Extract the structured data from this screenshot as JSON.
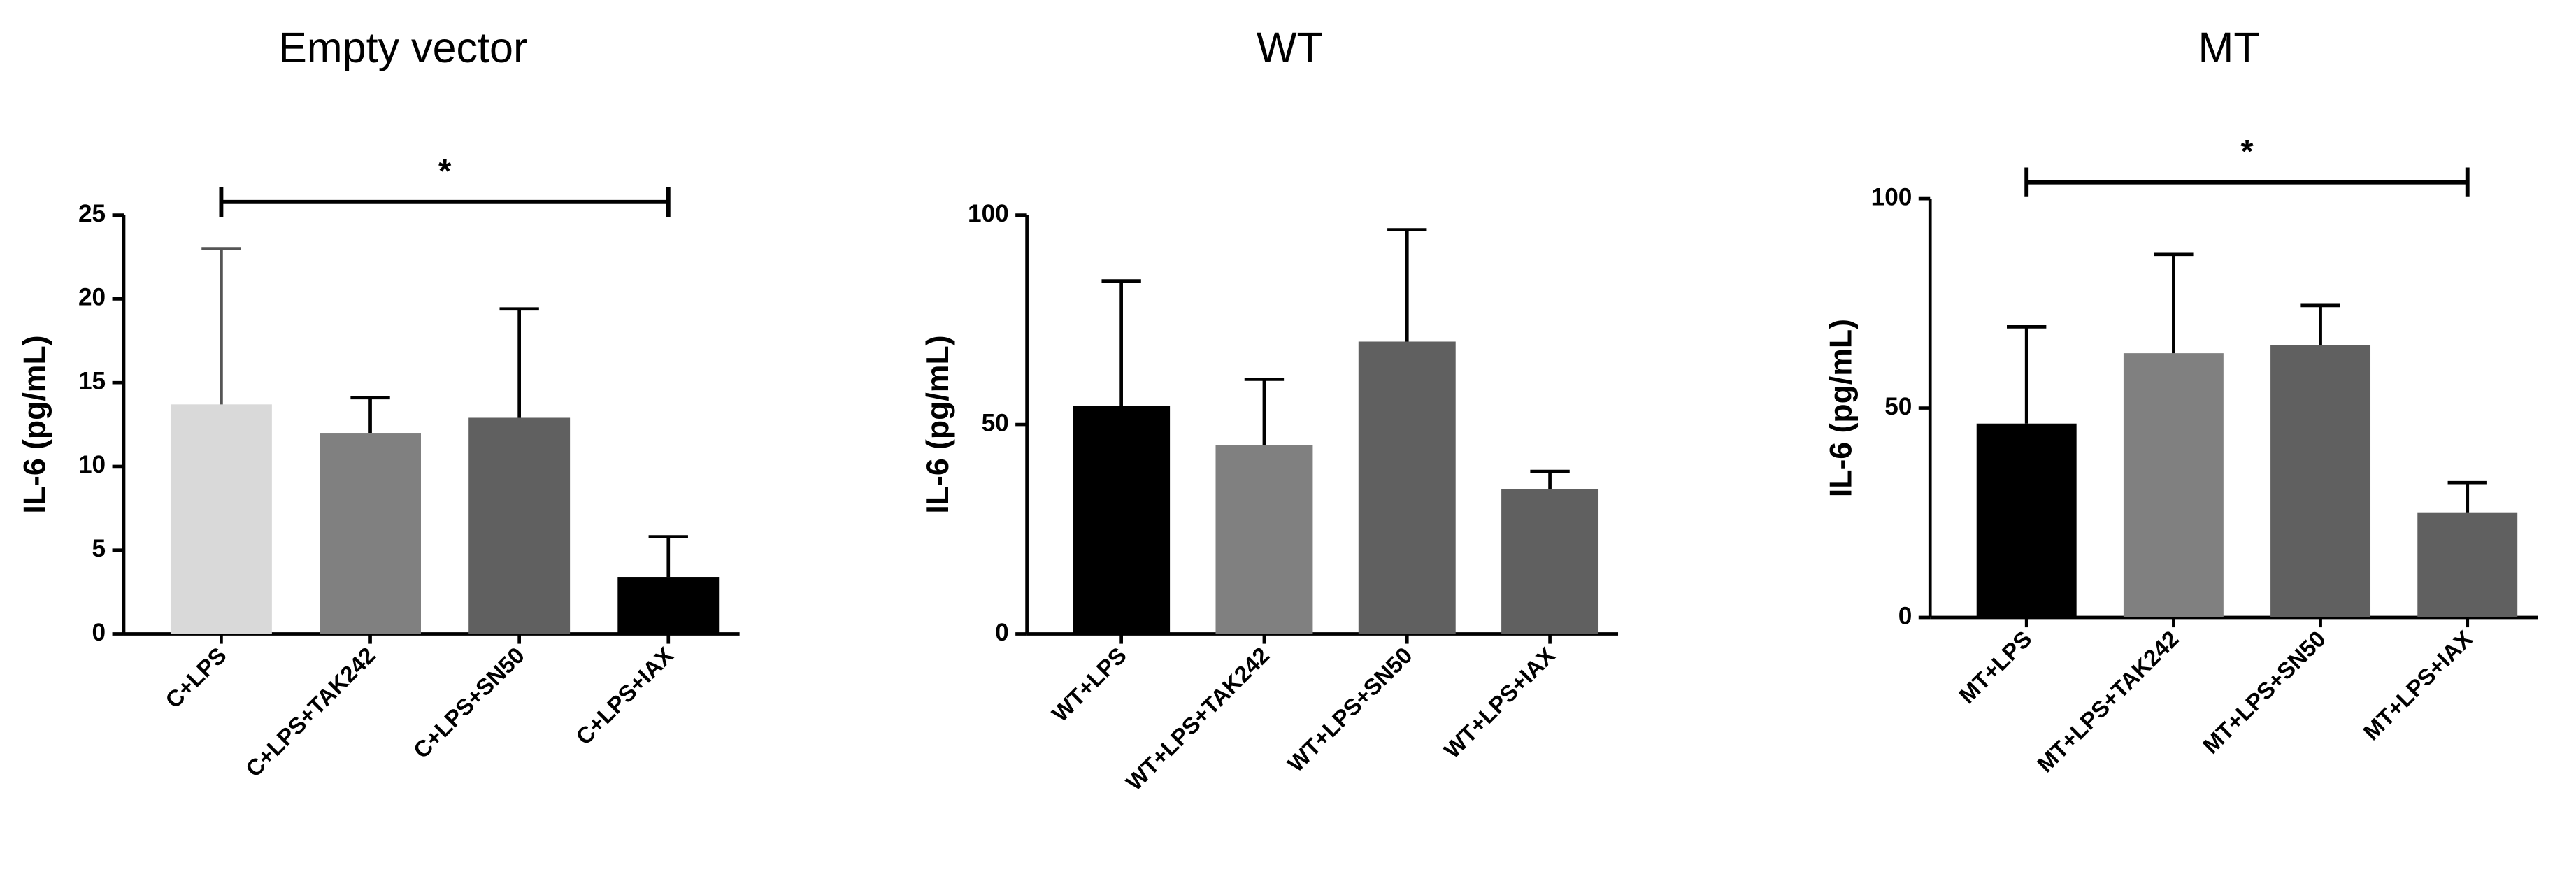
{
  "chart_data": [
    {
      "type": "bar",
      "title": "Empty vector",
      "ylabel": "IL-6 (pg/mL)",
      "categories": [
        "C+LPS",
        "C+LPS+TAK242",
        "C+LPS+SN50",
        "C+LPS+IAX"
      ],
      "values": [
        13.7,
        12.0,
        12.9,
        3.4
      ],
      "errors": [
        9.3,
        2.1,
        6.5,
        2.4
      ],
      "colors": [
        "#d9d9d9",
        "#808080",
        "#606060",
        "#000000"
      ],
      "ylim": [
        0,
        25
      ],
      "yticks": [
        0,
        5,
        10,
        15,
        20,
        25
      ],
      "significance": [
        {
          "label": "*",
          "from": 0,
          "to": 3
        }
      ]
    },
    {
      "type": "bar",
      "title": "WT",
      "ylabel": "IL-6 (pg/mL)",
      "categories": [
        "WT+LPS",
        "WT+LPS+TAK242",
        "WT+LPS+SN50",
        "WT+LPS+IAX"
      ],
      "values": [
        54.5,
        45.1,
        69.8,
        34.5
      ],
      "errors": [
        29.8,
        15.7,
        26.7,
        4.3
      ],
      "colors": [
        "#000000",
        "#808080",
        "#606060",
        "#606060"
      ],
      "ylim": [
        0,
        100
      ],
      "yticks": [
        0,
        50,
        100
      ]
    },
    {
      "type": "bar",
      "title": "MT",
      "ylabel": "IL-6 (pg/mL)",
      "categories": [
        "MT+LPS",
        "MT+LPS+TAK242",
        "MT+LPS+SN50",
        "MT+LPS+IAX"
      ],
      "values": [
        46.3,
        63.1,
        65.1,
        25.1
      ],
      "errors": [
        23.1,
        23.6,
        9.4,
        7.1
      ],
      "colors": [
        "#000000",
        "#808080",
        "#606060",
        "#606060"
      ],
      "ylim": [
        0,
        100
      ],
      "yticks": [
        0,
        50,
        100
      ],
      "significance": [
        {
          "label": "*",
          "from": 0,
          "to": 3
        }
      ]
    }
  ]
}
